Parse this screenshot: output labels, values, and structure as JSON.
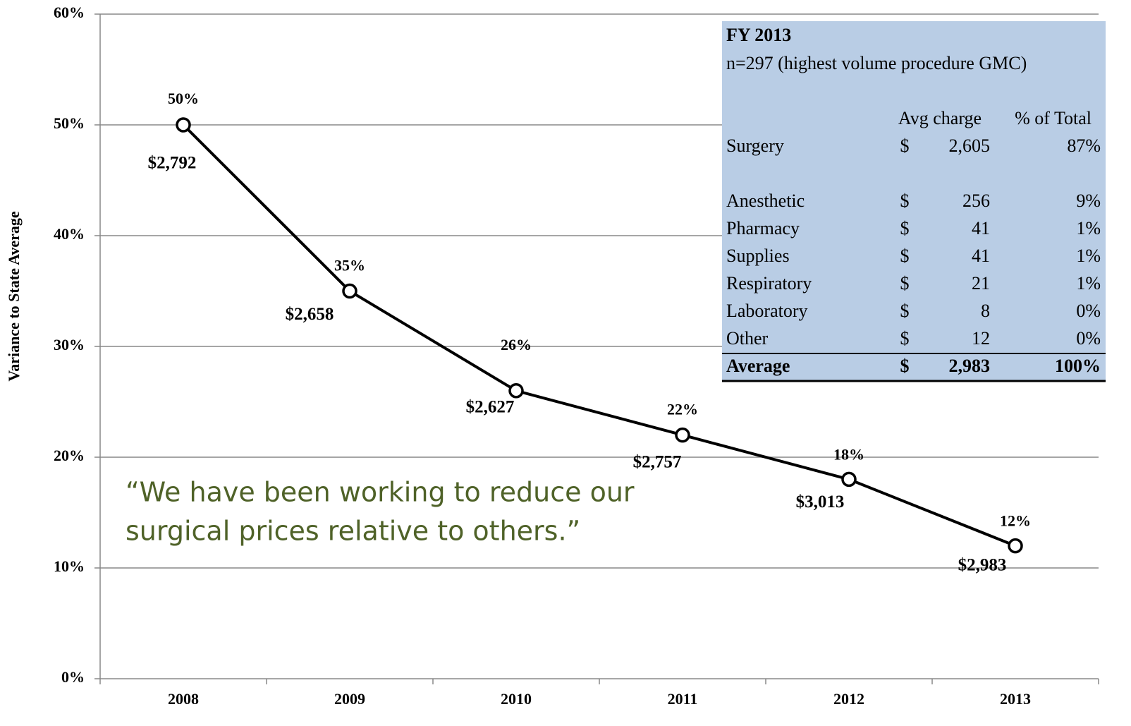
{
  "chart_data": {
    "type": "line",
    "y_label": "Variance to State Average",
    "categories": [
      "2008",
      "2009",
      "2010",
      "2011",
      "2012",
      "2013"
    ],
    "series": [
      {
        "color": "#000000",
        "values": [
          50,
          35,
          26,
          22,
          18,
          12
        ],
        "value_labels": [
          "50%",
          "35%",
          "26%",
          "22%",
          "18%",
          "12%"
        ]
      }
    ],
    "point_annotations": [
      "$2,792",
      "$2,658",
      "$2,627",
      "$2,757",
      "$3,013",
      "$2,983"
    ],
    "ylim": [
      0,
      60
    ],
    "yticks": [
      {
        "value": 0,
        "label": "0%"
      },
      {
        "value": 10,
        "label": "10%"
      },
      {
        "value": 20,
        "label": "20%"
      },
      {
        "value": 30,
        "label": "30%"
      },
      {
        "value": 40,
        "label": "40%"
      },
      {
        "value": 50,
        "label": "50%"
      },
      {
        "value": 60,
        "label": "60%"
      }
    ],
    "grid": true,
    "quote": [
      "“We have been working to reduce our",
      "surgical prices relative to others.”"
    ],
    "inset_table": {
      "title": "FY 2013",
      "subtitle": "n=297 (highest volume procedure GMC)",
      "header": [
        "Avg charge",
        "% of Total"
      ],
      "rows": [
        [
          "Surgery",
          "$",
          "2,605",
          "87%"
        ],
        [
          "Anesthetic",
          "$",
          "256",
          "9%"
        ],
        [
          "Pharmacy",
          "$",
          "41",
          "1%"
        ],
        [
          "Supplies",
          "$",
          "41",
          "1%"
        ],
        [
          "Respiratory",
          "$",
          "21",
          "1%"
        ],
        [
          "Laboratory",
          "$",
          "8",
          "0%"
        ],
        [
          "Other",
          "$",
          "12",
          "0%"
        ]
      ],
      "total": [
        "Average",
        "$",
        "2,983",
        "100%"
      ]
    }
  }
}
